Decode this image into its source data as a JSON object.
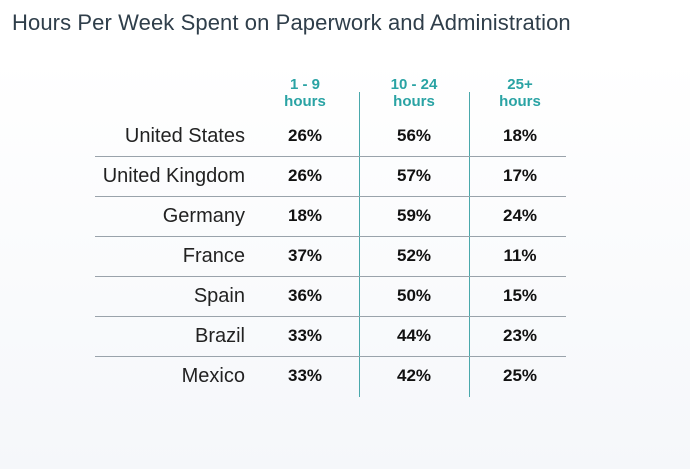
{
  "title": "Hours Per Week Spent on Paperwork and Administration",
  "chart_data": {
    "type": "table",
    "title": "Hours Per Week Spent on Paperwork and Administration",
    "columns": [
      {
        "line1": "1 - 9",
        "line2": "hours"
      },
      {
        "line1": "10 - 24",
        "line2": "hours"
      },
      {
        "line1": "25+",
        "line2": "hours"
      }
    ],
    "rows": [
      {
        "country": "United States",
        "values": [
          "26%",
          "56%",
          "18%"
        ]
      },
      {
        "country": "United Kingdom",
        "values": [
          "26%",
          "57%",
          "17%"
        ]
      },
      {
        "country": "Germany",
        "values": [
          "18%",
          "59%",
          "24%"
        ]
      },
      {
        "country": "France",
        "values": [
          "37%",
          "52%",
          "11%"
        ]
      },
      {
        "country": "Spain",
        "values": [
          "36%",
          "50%",
          "15%"
        ]
      },
      {
        "country": "Brazil",
        "values": [
          "33%",
          "44%",
          "23%"
        ]
      },
      {
        "country": "Mexico",
        "values": [
          "33%",
          "42%",
          "25%"
        ]
      }
    ]
  },
  "colors": {
    "accent": "#2aa3a4",
    "title": "#2f3e4a"
  }
}
